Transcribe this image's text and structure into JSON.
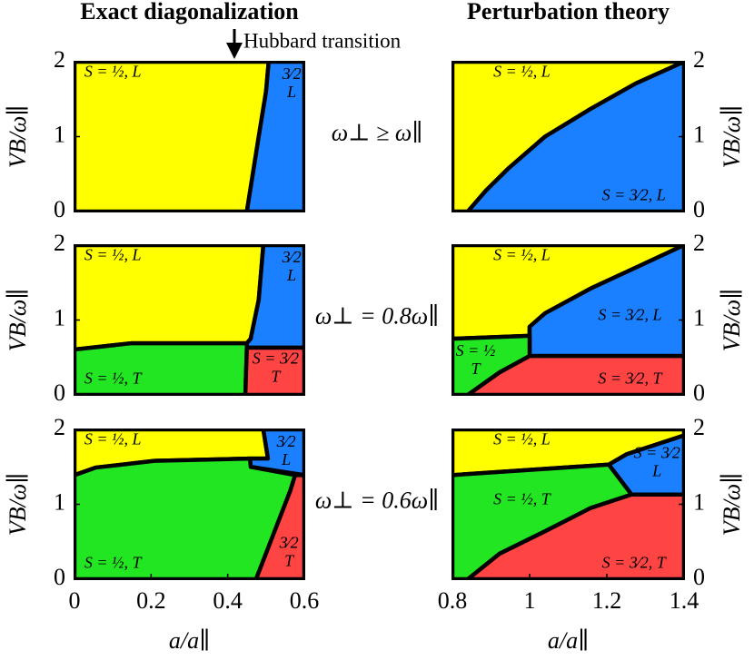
{
  "chart_data": [
    {
      "type": "phase",
      "title": "Exact diagonalization",
      "annotation": "Hubbard transition",
      "condition": "ω⊥ ≥ ω∥",
      "ylabel": "VB/ω∥",
      "xlim": [
        0,
        0.6
      ],
      "ylim": [
        0,
        2
      ],
      "yticks": [
        0,
        1,
        2
      ],
      "regions": [
        {
          "color": "#ffff00",
          "label": "S = ½, L",
          "x": [
            0,
            0.45,
            0.481,
            0.5,
            0.507,
            0
          ],
          "y": [
            0,
            0,
            1,
            1.6,
            2,
            2
          ]
        },
        {
          "color": "#1a80ff",
          "label": [
            "3⁄2",
            "L"
          ],
          "x": [
            0.45,
            0.6,
            0.6,
            0.507,
            0.5,
            0.481
          ],
          "y": [
            0,
            0,
            2,
            2,
            1.6,
            1
          ]
        }
      ]
    },
    {
      "type": "phase",
      "title": "Perturbation theory",
      "ylabel": "VB/ω∥",
      "xlim": [
        0.8,
        1.4
      ],
      "ylim": [
        0,
        2
      ],
      "yticks": [
        0,
        1,
        2
      ],
      "regions": [
        {
          "color": "#ffff00",
          "label": "S = ½, L",
          "x": [
            0.8,
            0.84,
            0.887,
            0.946,
            1.04,
            1.158,
            1.275,
            1.4,
            0.8
          ],
          "y": [
            0,
            0,
            0.28,
            0.58,
            1,
            1.37,
            1.71,
            2,
            2
          ]
        },
        {
          "color": "#1a80ff",
          "label": "S = 3⁄2, L",
          "x": [
            0.84,
            1.4,
            1.4,
            1.275,
            1.158,
            1.04,
            0.946,
            0.887
          ],
          "y": [
            0,
            0,
            2,
            1.71,
            1.37,
            1,
            0.58,
            0.28
          ]
        }
      ]
    },
    {
      "type": "phase",
      "condition": "ω⊥ = 0.8ω∥",
      "ylabel": "VB/ω∥",
      "xlim": [
        0,
        0.6
      ],
      "ylim": [
        0,
        2
      ],
      "yticks": [
        0,
        1,
        2
      ],
      "regions": [
        {
          "color": "#ffff00",
          "label": "S = ½, L",
          "x": [
            0,
            0.149,
            0.45,
            0.46,
            0.481,
            0.493,
            0
          ],
          "y": [
            0.606,
            0.69,
            0.69,
            0.75,
            1.27,
            2,
            2
          ]
        },
        {
          "color": "#1a80ff",
          "label": [
            "3⁄2",
            "L"
          ],
          "x": [
            0.45,
            0.46,
            0.481,
            0.493,
            0.6,
            0.6,
            0.45
          ],
          "y": [
            0.69,
            0.75,
            1.27,
            2,
            2,
            0.63,
            0.63
          ]
        },
        {
          "color": "#22e622",
          "label": "S = ½, T",
          "x": [
            0,
            0.446,
            0.45,
            0.45,
            0.149,
            0
          ],
          "y": [
            0,
            0,
            0.63,
            0.69,
            0.69,
            0.606
          ]
        },
        {
          "color": "#ff4444",
          "label": [
            "S = 3⁄2",
            "T"
          ],
          "x": [
            0.446,
            0.6,
            0.6,
            0.45
          ],
          "y": [
            0,
            0,
            0.63,
            0.63
          ]
        }
      ]
    },
    {
      "type": "phase",
      "ylabel": "VB/ω∥",
      "xlim": [
        0.8,
        1.4
      ],
      "ylim": [
        0,
        2
      ],
      "yticks": [
        0,
        1,
        2
      ],
      "regions": [
        {
          "color": "#ffff00",
          "label": "S = ½, L",
          "x": [
            0.8,
            1.0,
            1.0,
            1.04,
            1.158,
            1.275,
            1.4,
            0.8
          ],
          "y": [
            0.75,
            0.79,
            0.91,
            1.09,
            1.42,
            1.7,
            2,
            2
          ]
        },
        {
          "color": "#1a80ff",
          "label": "S = 3⁄2, L",
          "x": [
            1.0,
            1.0,
            1.4,
            1.4,
            1.275,
            1.158,
            1.04,
            1.0
          ],
          "y": [
            0.79,
            0.52,
            0.52,
            2,
            1.7,
            1.42,
            1.09,
            0.91
          ]
        },
        {
          "color": "#22e622",
          "label": [
            "S = ½",
            "T"
          ],
          "x": [
            0.8,
            0.84,
            0.922,
            1.0,
            1.0,
            0.8
          ],
          "y": [
            0,
            0,
            0.3,
            0.52,
            0.79,
            0.75
          ]
        },
        {
          "color": "#ff4444",
          "label": "S = 3⁄2, T",
          "x": [
            0.84,
            1.4,
            1.4,
            1.0,
            0.922
          ],
          "y": [
            0,
            0,
            0.52,
            0.52,
            0.3
          ]
        }
      ]
    },
    {
      "type": "phase",
      "condition": "ω⊥ = 0.6ω∥",
      "ylabel": "VB/ω∥",
      "xlabel": "a/a∥",
      "xlim": [
        0,
        0.6
      ],
      "xticks": [
        0,
        0.2,
        0.4,
        0.6
      ],
      "ylim": [
        0,
        2
      ],
      "yticks": [
        0,
        1,
        2
      ],
      "regions": [
        {
          "color": "#ffff00",
          "label": "S = ½, L",
          "x": [
            0,
            0.055,
            0.209,
            0.458,
            0.505,
            0.493,
            0
          ],
          "y": [
            1.39,
            1.49,
            1.58,
            1.61,
            1.61,
            2,
            2
          ]
        },
        {
          "color": "#1a80ff",
          "label": [
            "3⁄2",
            "L"
          ],
          "x": [
            0.493,
            0.6,
            0.6,
            0.46,
            0.458,
            0.505
          ],
          "y": [
            2,
            2,
            1.39,
            1.5,
            1.61,
            1.61
          ]
        },
        {
          "color": "#22e622",
          "label": "S = ½, T",
          "x": [
            0,
            0.474,
            0.564,
            0.576,
            0.46,
            0.458,
            0.209,
            0.055,
            0
          ],
          "y": [
            0,
            0,
            1.19,
            1.39,
            1.5,
            1.61,
            1.58,
            1.49,
            1.39
          ]
        },
        {
          "color": "#ff4444",
          "label": [
            "3⁄2",
            "T"
          ],
          "x": [
            0.474,
            0.6,
            0.6,
            0.576,
            0.564
          ],
          "y": [
            0,
            0,
            1.39,
            1.39,
            1.19
          ]
        }
      ]
    },
    {
      "type": "phase",
      "ylabel": "VB/ω∥",
      "xlabel": "a/a∥",
      "xlim": [
        0.8,
        1.4
      ],
      "xticks": [
        0.8,
        1,
        1.2,
        1.4
      ],
      "ylim": [
        0,
        2
      ],
      "yticks": [
        0,
        1,
        2
      ],
      "regions": [
        {
          "color": "#ffff00",
          "label": "S = ½, L",
          "x": [
            0.8,
            1.205,
            1.252,
            1.4,
            1.4,
            0.8
          ],
          "y": [
            1.39,
            1.53,
            1.67,
            1.92,
            2,
            2
          ]
        },
        {
          "color": "#1a80ff",
          "label": [
            "S = 3⁄2",
            "L"
          ],
          "x": [
            1.205,
            1.252,
            1.4,
            1.4,
            1.264
          ],
          "y": [
            1.53,
            1.67,
            1.92,
            1.13,
            1.13
          ]
        },
        {
          "color": "#22e622",
          "label": "S = ½, T",
          "x": [
            0.8,
            0.84,
            0.922,
            1.04,
            1.158,
            1.264,
            1.205,
            0.8
          ],
          "y": [
            0,
            0,
            0.34,
            0.64,
            0.95,
            1.13,
            1.53,
            1.39
          ]
        },
        {
          "color": "#ff4444",
          "label": "S = 3⁄2, T",
          "x": [
            0.84,
            1.4,
            1.4,
            1.264,
            1.158,
            1.04,
            0.922
          ],
          "y": [
            0,
            0,
            1.13,
            1.13,
            0.95,
            0.64,
            0.34
          ]
        }
      ]
    }
  ]
}
